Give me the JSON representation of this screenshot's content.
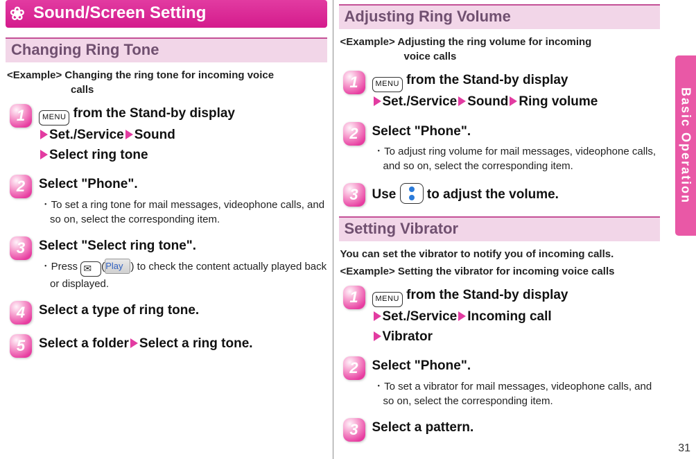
{
  "title": {
    "text": "Sound/Screen Setting",
    "icon": "❀",
    "bg_gradient": [
      "#e23ba1",
      "#d41b8c"
    ],
    "fg": "#ffffff"
  },
  "side_tab": {
    "label": "Basic Operation",
    "bg": "#e958a6",
    "fg": "#ffffff"
  },
  "page_number": "31",
  "colors": {
    "section_bg": "#f2d6e8",
    "section_border": "#c45096",
    "section_fg": "#705070",
    "arrow": "#e23ba1",
    "stepnum_gradient": [
      "#fff3fa",
      "#f7a2d0",
      "#e73ca0"
    ],
    "play_fg": "#3060c0",
    "dpad_dot": "#2b7bd9"
  },
  "keys": {
    "menu": "MENU",
    "play": "Play"
  },
  "left": {
    "section1": {
      "heading": "Changing Ring Tone",
      "example_lead": "<Example> Changing the ring tone for incoming voice",
      "example_cont": "calls",
      "steps": {
        "s1": {
          "line1_a": " from the Stand-by display",
          "line2_a": "Set./Service",
          "line2_b": "Sound",
          "line3_a": "Select ring tone"
        },
        "s2": {
          "title": "Select \"Phone\".",
          "bullet": "･ To set a ring tone for mail messages, videophone calls, and so on, select the corresponding item."
        },
        "s3": {
          "title": "Select \"Select ring tone\".",
          "bullet_a": "･ Press ",
          "bullet_b": " to check the content actually played back or displayed."
        },
        "s4": {
          "title": "Select a type of ring tone."
        },
        "s5": {
          "title_a": "Select a folder",
          "title_b": "Select a ring tone."
        }
      }
    }
  },
  "right": {
    "section2": {
      "heading": "Adjusting Ring Volume",
      "example_lead": "<Example> Adjusting the ring volume for incoming",
      "example_cont": "voice calls",
      "steps": {
        "s1": {
          "line1_a": " from the Stand-by display",
          "line2_a": "Set./Service",
          "line2_b": "Sound",
          "line2_c": "Ring volume"
        },
        "s2": {
          "title": "Select \"Phone\".",
          "bullet": "･ To adjust ring volume for mail messages, videophone calls, and so on, select the corresponding item."
        },
        "s3": {
          "title_a": "Use ",
          "title_b": " to adjust the volume."
        }
      }
    },
    "section3": {
      "heading": "Setting Vibrator",
      "intro": "You can set the vibrator to notify you of incoming calls.",
      "example": "<Example> Setting the vibrator for incoming voice calls",
      "steps": {
        "s1": {
          "line1_a": " from the Stand-by display",
          "line2_a": "Set./Service",
          "line2_b": "Incoming call",
          "line3_a": "Vibrator"
        },
        "s2": {
          "title": "Select \"Phone\".",
          "bullet": "･ To set a vibrator for mail messages, videophone calls, and so on, select the corresponding item."
        },
        "s3": {
          "title": "Select a pattern."
        }
      }
    }
  }
}
